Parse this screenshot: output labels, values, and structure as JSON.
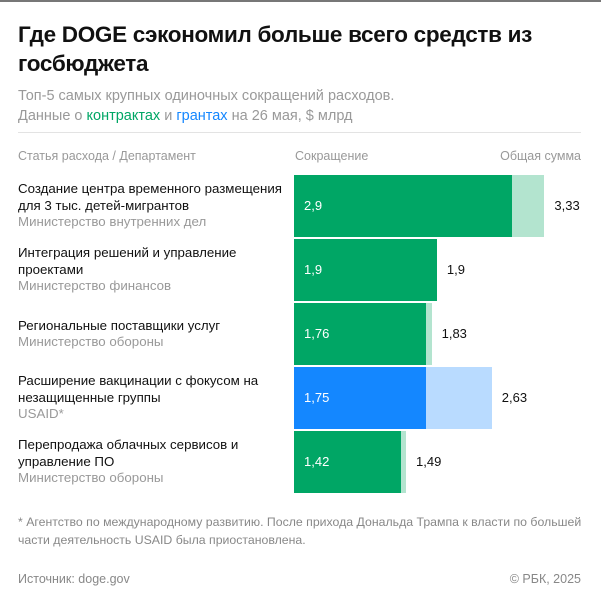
{
  "title": "Где DOGE сэкономил больше всего средств из госбюджета",
  "subtitle": {
    "line1": "Топ-5 самых крупных одиночных сокращений расходов.",
    "pre": "Данные о",
    "contracts": "контрактах",
    "and": "и",
    "grants": "грантах",
    "post": "на 26 мая, $ млрд"
  },
  "headers": {
    "item": "Статья расхода / Департамент",
    "cut": "Сокращение",
    "total": "Общая сумма"
  },
  "colors": {
    "contract": "#00a665",
    "contract_light": "#b3e4cf",
    "grant": "#1487ff",
    "grant_light": "#b9dbff"
  },
  "chart_data": {
    "type": "bar",
    "orientation": "horizontal",
    "categories": [
      {
        "label": "Создание центра временного размещения для 3 тыс. детей-мигрантов",
        "department": "Министерство внутренних дел",
        "kind": "contract"
      },
      {
        "label": "Интеграция решений и управление проектами",
        "department": "Министерство финансов",
        "kind": "contract"
      },
      {
        "label": "Региональные поставщики услуг",
        "department": "Министерство обороны",
        "kind": "contract"
      },
      {
        "label": "Расширение вакцинации с фокусом на незащищенные группы",
        "department": "USAID*",
        "kind": "grant"
      },
      {
        "label": "Перепродажа облачных сервисов и управление ПО",
        "department": "Министерство обороны",
        "kind": "contract"
      }
    ],
    "series": [
      {
        "name": "Сокращение",
        "values": [
          2.9,
          1.9,
          1.76,
          1.75,
          1.42
        ],
        "labels": [
          "2,9",
          "1,9",
          "1,76",
          "1,75",
          "1,42"
        ]
      },
      {
        "name": "Общая сумма",
        "values": [
          3.33,
          1.9,
          1.83,
          2.63,
          1.49
        ],
        "labels": [
          "3,33",
          "1,9",
          "1,83",
          "2,63",
          "1,49"
        ]
      }
    ]
  },
  "footnote": "* Агентство по международному развитию. После прихода Дональда Трампа к власти по большей части деятельность USAID была приостановлена.",
  "source": "Источник: doge.gov",
  "copyright": "© РБК, 2025"
}
